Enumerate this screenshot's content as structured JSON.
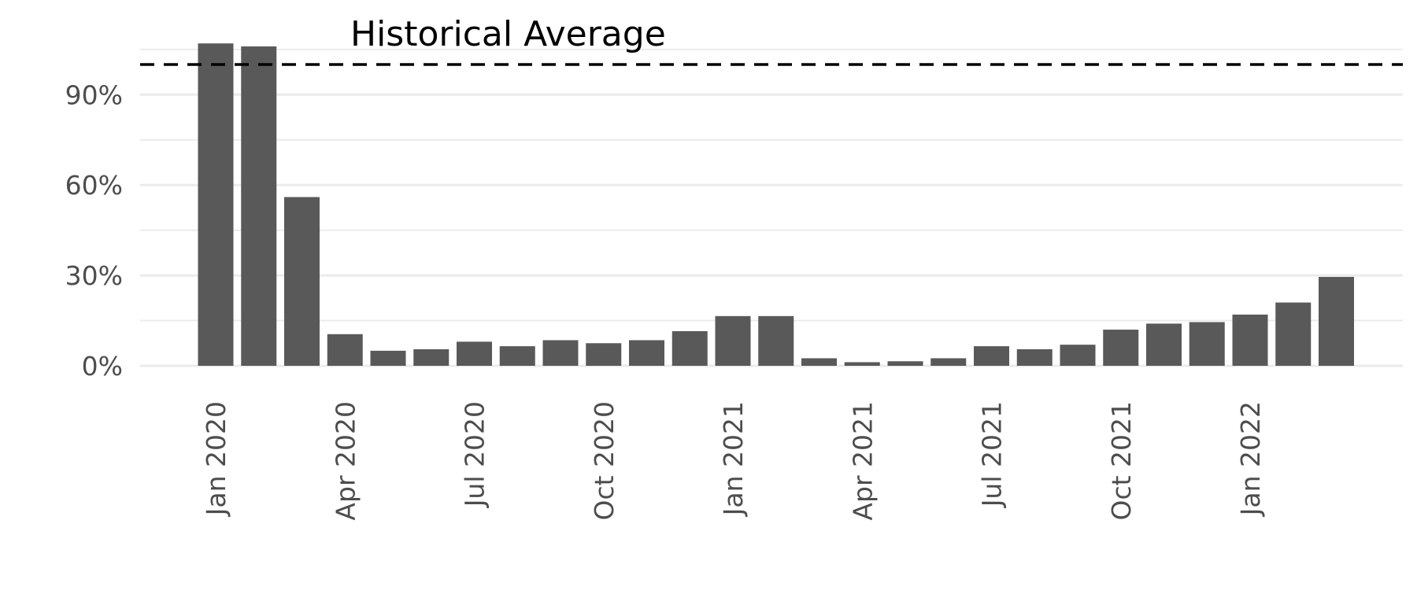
{
  "chart_data": {
    "type": "bar",
    "title": "",
    "xlabel": "",
    "ylabel": "",
    "x": [
      "2020-01",
      "2020-02",
      "2020-03",
      "2020-04",
      "2020-05",
      "2020-06",
      "2020-07",
      "2020-08",
      "2020-09",
      "2020-10",
      "2020-11",
      "2020-12",
      "2021-01",
      "2021-02",
      "2021-03",
      "2021-04",
      "2021-05",
      "2021-06",
      "2021-07",
      "2021-08",
      "2021-09",
      "2021-10",
      "2021-11",
      "2021-12",
      "2022-01",
      "2022-02",
      "2022-03"
    ],
    "values": [
      107,
      106,
      56,
      10.5,
      5,
      5.5,
      8,
      6.5,
      8.5,
      7.5,
      8.5,
      11.5,
      16.5,
      16.5,
      2.5,
      1.2,
      1.5,
      2.5,
      6.5,
      5.5,
      7,
      12,
      14,
      14.5,
      17,
      21,
      29.5
    ],
    "ylim": [
      0,
      115
    ],
    "y_ticks": [
      0,
      30,
      60,
      90
    ],
    "y_tick_labels": [
      "0%",
      "30%",
      "60%",
      "90%"
    ],
    "y_minor_ticks": [
      15,
      45,
      75,
      105
    ],
    "x_ticks": [
      "2020-01",
      "2020-04",
      "2020-07",
      "2020-10",
      "2021-01",
      "2021-04",
      "2021-07",
      "2021-10",
      "2022-01"
    ],
    "x_tick_labels": [
      "Jan 2020",
      "Apr 2020",
      "Jul 2020",
      "Oct 2020",
      "Jan 2021",
      "Apr 2021",
      "Jul 2021",
      "Oct 2021",
      "Jan 2022"
    ],
    "reference_line": {
      "value": 100,
      "label": "Historical Average",
      "style": "dashed"
    },
    "grid": true,
    "colors": {
      "bar": "#595959",
      "grid": "#ebebeb",
      "reference_line": "#000000",
      "tick_text": "#4d4d4d"
    }
  }
}
